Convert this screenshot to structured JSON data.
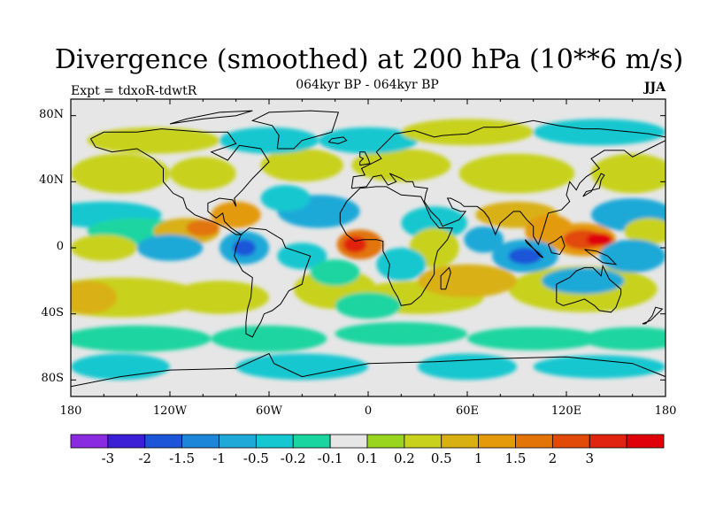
{
  "title": "Divergence (smoothed) at 200 hPa (10**6 m/s)",
  "subtitle": "064kyr BP - 064kyr BP",
  "experiment": "Expt = tdxoR-tdwtR",
  "season": "JJA",
  "map": {
    "projection": "cylindrical-equidistant",
    "lon_range": [
      -180,
      180
    ],
    "lat_range": [
      -90,
      90
    ],
    "lon_ticks": [
      "180",
      "120W",
      "60W",
      "0",
      "60E",
      "120E",
      "180"
    ],
    "lat_ticks": [
      "80N",
      "40N",
      "0",
      "40S",
      "80S"
    ],
    "background_color": "#e6e6e6",
    "coastline_color": "#000000"
  },
  "colorbar": {
    "colors": [
      "#8a2be2",
      "#3a1fd6",
      "#1d55d8",
      "#1e86d8",
      "#1fa9d8",
      "#14c7d0",
      "#1ad5a0",
      "#e6e6e6",
      "#99d41e",
      "#c8d21c",
      "#d9b012",
      "#e49a0a",
      "#e27408",
      "#e14a08",
      "#e02410",
      "#e0000a"
    ],
    "labels": [
      "-3",
      "-2",
      "-1.5",
      "-1",
      "-0.5",
      "-0.2",
      "-0.1",
      "0.1",
      "0.2",
      "0.5",
      "1",
      "1.5",
      "2",
      "3"
    ]
  },
  "chart_data": {
    "type": "map",
    "title": "Divergence (smoothed) at 200 hPa (10**6 m/s)",
    "variable": "divergence at 200 hPa",
    "units": "10**6 m/s",
    "levels": [
      -3,
      -2,
      -1.5,
      -1,
      -0.5,
      -0.2,
      -0.1,
      0.1,
      0.2,
      0.5,
      1,
      1.5,
      2,
      3
    ],
    "features": [
      {
        "name": "west-pacific-warm-pool-maximum",
        "lon": 135,
        "lat": 5,
        "value": 3
      },
      {
        "name": "equatorial-atlantic-maximum",
        "lon": -5,
        "lat": 0,
        "value": 2.5
      },
      {
        "name": "central-america-maximum",
        "lon": -105,
        "lat": 10,
        "value": 1.5
      },
      {
        "name": "amazon-minimum",
        "lon": -75,
        "lat": 0,
        "value": -2
      },
      {
        "name": "indian-ocean-minimum",
        "lon": 95,
        "lat": -5,
        "value": -2
      },
      {
        "name": "north-atlantic-minimum",
        "lon": -30,
        "lat": 25,
        "value": -1
      },
      {
        "name": "southern-ocean-positive-band",
        "lon": -170,
        "lat": -30,
        "value": 1
      }
    ]
  }
}
